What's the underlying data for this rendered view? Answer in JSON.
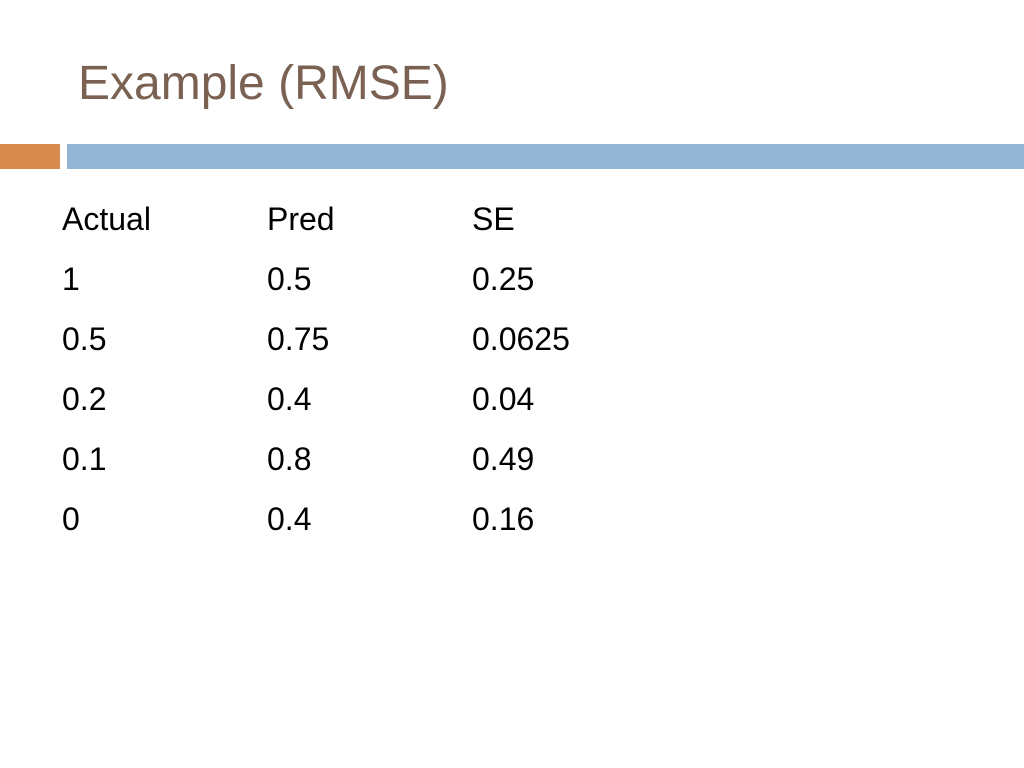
{
  "title": "Example (RMSE)",
  "colors": {
    "title": "#7a6152",
    "accent_orange": "#d98a4f",
    "accent_blue": "#93b4d3"
  },
  "table": {
    "headers": [
      "Actual",
      "Pred",
      "SE"
    ],
    "rows": [
      [
        "1",
        "0.5",
        "0.25"
      ],
      [
        "0.5",
        "0.75",
        "0.0625"
      ],
      [
        "0.2",
        "0.4",
        "0.04"
      ],
      [
        "0.1",
        "0.8",
        "0.49"
      ],
      [
        "0",
        "0.4",
        "0.16"
      ]
    ]
  }
}
